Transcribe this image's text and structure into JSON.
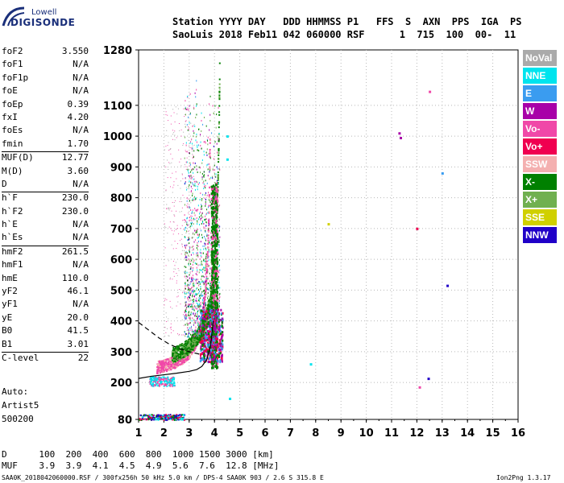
{
  "logo": {
    "top": "Lowell",
    "bottom": "DIGISONDE"
  },
  "header": {
    "line1": "Station YYYY DAY   DDD HHMMSS P1   FFS  S  AXN  PPS  IGA  PS",
    "line2": "SaoLuis 2018 Feb11 042 060000 RSF      1  715  100  00-  11"
  },
  "params": [
    {
      "k": "foF2",
      "v": "3.550"
    },
    {
      "k": "foF1",
      "v": "N/A"
    },
    {
      "k": "foF1p",
      "v": "N/A"
    },
    {
      "k": "foE",
      "v": "N/A"
    },
    {
      "k": "foEp",
      "v": "0.39"
    },
    {
      "k": "fxI",
      "v": "4.20"
    },
    {
      "k": "foEs",
      "v": "N/A"
    },
    {
      "k": "fmin",
      "v": "1.70"
    },
    {
      "k": "MUF(D)",
      "v": "12.77"
    },
    {
      "k": "M(D)",
      "v": "3.60"
    },
    {
      "k": "D",
      "v": "N/A"
    },
    {
      "k": "h`F",
      "v": "230.0"
    },
    {
      "k": "h`F2",
      "v": "230.0"
    },
    {
      "k": "h`E",
      "v": "N/A"
    },
    {
      "k": "h`Es",
      "v": "N/A"
    },
    {
      "k": "hmF2",
      "v": "261.5"
    },
    {
      "k": "hmF1",
      "v": "N/A"
    },
    {
      "k": "hmE",
      "v": "110.0"
    },
    {
      "k": "yF2",
      "v": "46.1"
    },
    {
      "k": "yF1",
      "v": "N/A"
    },
    {
      "k": "yE",
      "v": "20.0"
    },
    {
      "k": "B0",
      "v": "41.5"
    },
    {
      "k": "B1",
      "v": "3.01"
    },
    {
      "k": "C-level",
      "v": "22"
    }
  ],
  "auto": {
    "line1": "Auto:",
    "line2": "Artist5",
    "line3": "500200"
  },
  "legend": [
    {
      "label": "NoVal",
      "color": "#aaaaaa"
    },
    {
      "label": "NNE",
      "color": "#00e4ee"
    },
    {
      "label": "E",
      "color": "#3a9cf0"
    },
    {
      "label": "W",
      "color": "#a800a8"
    },
    {
      "label": "Vo-",
      "color": "#f048a8"
    },
    {
      "label": "Vo+",
      "color": "#f00050"
    },
    {
      "label": "SSW",
      "color": "#f4b0b0"
    },
    {
      "label": "X-",
      "color": "#008000"
    },
    {
      "label": "X+",
      "color": "#70b050"
    },
    {
      "label": "SSE",
      "color": "#d0d000"
    },
    {
      "label": "NNW",
      "color": "#2000c8"
    }
  ],
  "footer": {
    "d_line": "D      100  200  400  600  800  1000 1500 3000 [km]",
    "muf_line": "MUF    3.9  3.9  4.1  4.5  4.9  5.6  7.6  12.8 [MHz]",
    "file_line": "SAA0K_2018042060000.RSF / 300fx256h 50 kHz 5.0 km / DPS-4 SAA0K 903 / 2.6 S 315.8 E",
    "version": "Ion2Png 1.3.17"
  },
  "chart_data": {
    "type": "scatter",
    "xlim": [
      1,
      16
    ],
    "ylim": [
      80,
      1280
    ],
    "x_ticks": [
      1,
      2,
      3,
      4,
      5,
      6,
      7,
      8,
      9,
      10,
      11,
      12,
      13,
      14,
      15,
      16
    ],
    "y_ticks": [
      80,
      200,
      300,
      400,
      500,
      600,
      700,
      800,
      900,
      1000,
      1100,
      1280
    ],
    "grid": "dotted",
    "lines": [
      {
        "name": "profile-solid",
        "style": "solid",
        "x": [
          1.0,
          1.5,
          2.0,
          2.5,
          3.0,
          3.3,
          3.5,
          3.7,
          3.85,
          3.95
        ],
        "y": [
          213,
          220,
          225,
          230,
          236,
          242,
          252,
          275,
          320,
          400
        ]
      },
      {
        "name": "profile-dashed",
        "style": "dashed",
        "x": [
          1.0,
          1.4,
          1.8,
          2.2,
          2.6,
          3.0,
          3.4
        ],
        "y": [
          395,
          370,
          345,
          325,
          310,
          300,
          292
        ]
      }
    ],
    "isolated_points": [
      {
        "x": 11.3,
        "y": 1010,
        "color": "#a800a8"
      },
      {
        "x": 11.35,
        "y": 995,
        "color": "#a800a8"
      },
      {
        "x": 12.5,
        "y": 1145,
        "color": "#f048a8"
      },
      {
        "x": 13.0,
        "y": 880,
        "color": "#3a9cf0"
      },
      {
        "x": 8.5,
        "y": 715,
        "color": "#d0d000"
      },
      {
        "x": 12.0,
        "y": 700,
        "color": "#f00050"
      },
      {
        "x": 13.2,
        "y": 515,
        "color": "#2000c8"
      },
      {
        "x": 7.8,
        "y": 260,
        "color": "#00e4ee"
      },
      {
        "x": 12.45,
        "y": 213,
        "color": "#2000c8"
      },
      {
        "x": 12.1,
        "y": 185,
        "color": "#f048a8"
      },
      {
        "x": 4.6,
        "y": 148,
        "color": "#00e4ee"
      },
      {
        "x": 4.5,
        "y": 1000,
        "color": "#00e4ee"
      },
      {
        "x": 4.5,
        "y": 925,
        "color": "#00e4ee"
      }
    ]
  }
}
